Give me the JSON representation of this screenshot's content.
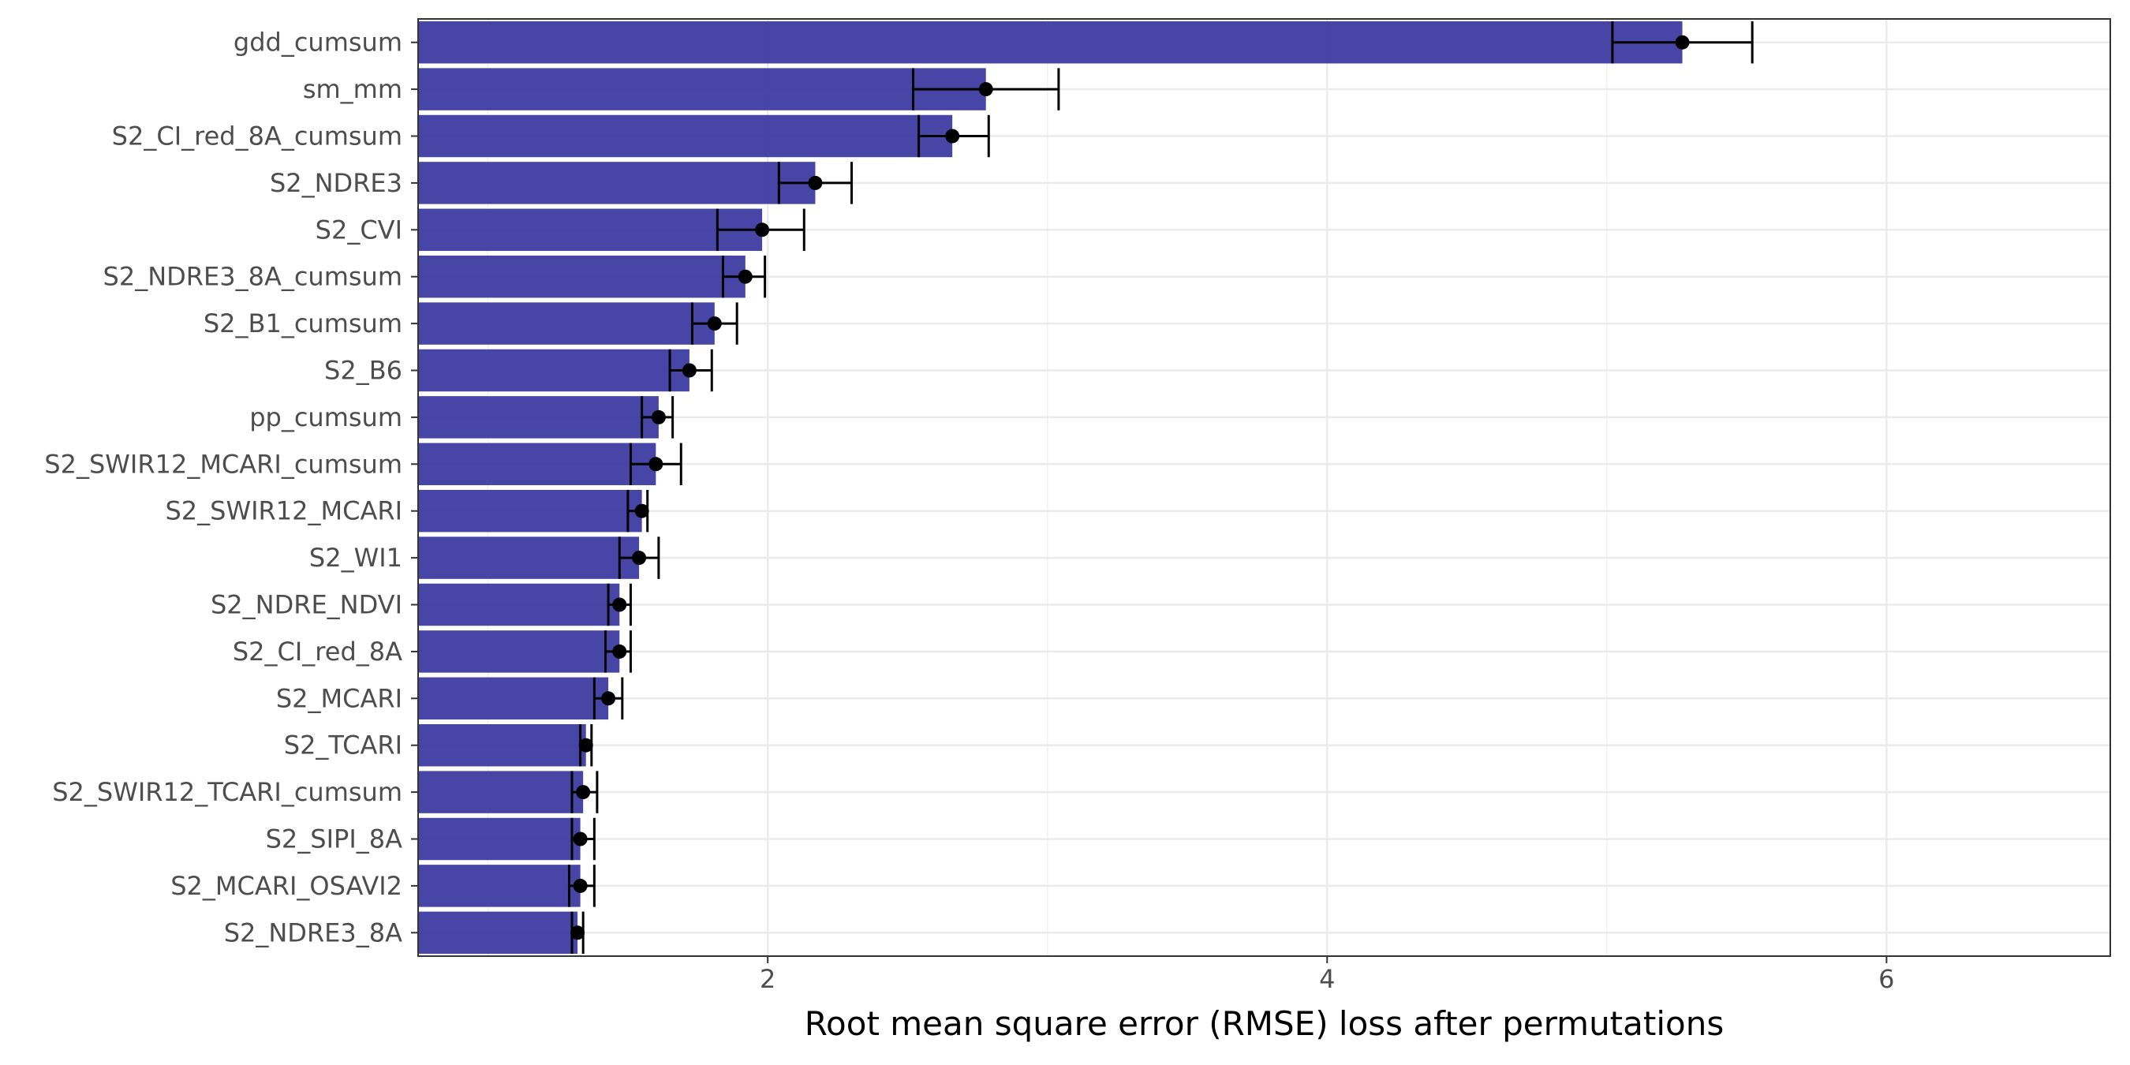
{
  "chart_data": {
    "type": "bar",
    "orientation": "horizontal",
    "title": "",
    "xlabel": "Root mean square error (RMSE) loss after permutations",
    "ylabel": "",
    "xlim": [
      0.75,
      6.8
    ],
    "x_ticks": [
      2,
      4,
      6
    ],
    "x_tick_labels": [
      "2",
      "4",
      "6"
    ],
    "grid": true,
    "legend": "none",
    "bar_color": "#3c39a0",
    "error_bar_color": "#000000",
    "categories": [
      "gdd_cumsum",
      "sm_mm",
      "S2_CI_red_8A_cumsum",
      "S2_NDRE3",
      "S2_CVI",
      "S2_NDRE3_8A_cumsum",
      "S2_B1_cumsum",
      "S2_B6",
      "pp_cumsum",
      "S2_SWIR12_MCARI_cumsum",
      "S2_SWIR12_MCARI",
      "S2_WI1",
      "S2_NDRE_NDVI",
      "S2_CI_red_8A",
      "S2_MCARI",
      "S2_TCARI",
      "S2_SWIR12_TCARI_cumsum",
      "S2_SIPI_8A",
      "S2_MCARI_OSAVI2",
      "S2_NDRE3_8A"
    ],
    "values": [
      5.27,
      2.78,
      2.66,
      2.17,
      1.98,
      1.92,
      1.81,
      1.72,
      1.61,
      1.6,
      1.55,
      1.54,
      1.47,
      1.47,
      1.43,
      1.35,
      1.34,
      1.33,
      1.33,
      1.32
    ],
    "points": [
      5.27,
      2.78,
      2.66,
      2.17,
      1.98,
      1.92,
      1.81,
      1.72,
      1.61,
      1.6,
      1.55,
      1.54,
      1.47,
      1.47,
      1.43,
      1.35,
      1.34,
      1.33,
      1.33,
      1.32
    ],
    "error_low": [
      5.02,
      2.52,
      2.54,
      2.04,
      1.82,
      1.84,
      1.73,
      1.65,
      1.55,
      1.51,
      1.5,
      1.47,
      1.43,
      1.42,
      1.38,
      1.33,
      1.3,
      1.3,
      1.29,
      1.3
    ],
    "error_high": [
      5.52,
      3.04,
      2.79,
      2.3,
      2.13,
      1.99,
      1.89,
      1.8,
      1.66,
      1.69,
      1.57,
      1.61,
      1.51,
      1.51,
      1.48,
      1.37,
      1.39,
      1.38,
      1.38,
      1.34
    ]
  }
}
